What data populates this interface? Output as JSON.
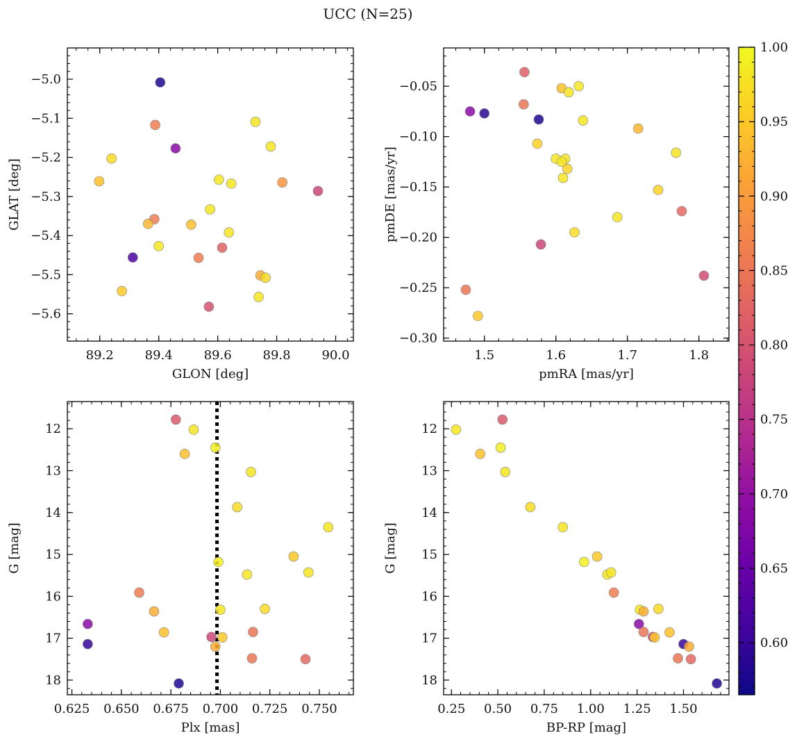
{
  "figure": {
    "title": "UCC (N=25)"
  },
  "colors": {
    "axis": "#000000",
    "marker_edge": "#7f7f7f",
    "vline": "#000000"
  },
  "colorbar": {
    "colormap": "plasma",
    "vmin": 0.565,
    "vmax": 1.0,
    "ticks": [
      0.6,
      0.65,
      0.7,
      0.75,
      0.8,
      0.85,
      0.9,
      0.95,
      1.0
    ],
    "tick_labels": [
      "0.60",
      "0.65",
      "0.70",
      "0.75",
      "0.80",
      "0.85",
      "0.90",
      "0.95",
      "1.00"
    ]
  },
  "chart_data": [
    {
      "type": "scatter",
      "xlabel": "GLON [deg]",
      "ylabel": "GLAT [deg]",
      "xlim": [
        89.09,
        90.06
      ],
      "ylim": [
        -5.67,
        -4.92
      ],
      "xticks": [
        89.2,
        89.4,
        89.6,
        89.8,
        90.0
      ],
      "xtick_labels": [
        "89.2",
        "89.4",
        "89.6",
        "89.8",
        "90.0"
      ],
      "yticks": [
        -5.0,
        -5.1,
        -5.2,
        -5.3,
        -5.4,
        -5.5,
        -5.6
      ],
      "ytick_labels": [
        "−5.0",
        "−5.1",
        "−5.2",
        "−5.3",
        "−5.4",
        "−5.5",
        "−5.6"
      ],
      "y_inverted": false,
      "points": [
        {
          "x": 89.405,
          "y": -5.008,
          "c": 0.58
        },
        {
          "x": 89.388,
          "y": -5.117,
          "c": 0.86
        },
        {
          "x": 89.457,
          "y": -5.177,
          "c": 0.69
        },
        {
          "x": 89.24,
          "y": -5.203,
          "c": 0.97
        },
        {
          "x": 89.198,
          "y": -5.261,
          "c": 0.94
        },
        {
          "x": 89.728,
          "y": -5.109,
          "c": 0.98
        },
        {
          "x": 89.78,
          "y": -5.172,
          "c": 0.98
        },
        {
          "x": 89.604,
          "y": -5.257,
          "c": 0.98
        },
        {
          "x": 89.646,
          "y": -5.267,
          "c": 0.98
        },
        {
          "x": 89.819,
          "y": -5.264,
          "c": 0.89
        },
        {
          "x": 89.94,
          "y": -5.286,
          "c": 0.78
        },
        {
          "x": 89.574,
          "y": -5.333,
          "c": 0.98
        },
        {
          "x": 89.385,
          "y": -5.358,
          "c": 0.86
        },
        {
          "x": 89.364,
          "y": -5.37,
          "c": 0.93
        },
        {
          "x": 89.51,
          "y": -5.372,
          "c": 0.94
        },
        {
          "x": 89.638,
          "y": -5.392,
          "c": 0.98
        },
        {
          "x": 89.4,
          "y": -5.427,
          "c": 0.98
        },
        {
          "x": 89.615,
          "y": -5.431,
          "c": 0.82
        },
        {
          "x": 89.312,
          "y": -5.456,
          "c": 0.62
        },
        {
          "x": 89.535,
          "y": -5.457,
          "c": 0.86
        },
        {
          "x": 89.745,
          "y": -5.502,
          "c": 0.92
        },
        {
          "x": 89.762,
          "y": -5.508,
          "c": 0.97
        },
        {
          "x": 89.275,
          "y": -5.542,
          "c": 0.95
        },
        {
          "x": 89.739,
          "y": -5.557,
          "c": 0.98
        },
        {
          "x": 89.57,
          "y": -5.582,
          "c": 0.8
        }
      ]
    },
    {
      "type": "scatter",
      "xlabel": "pmRA [mas/yr]",
      "ylabel": "pmDE [mas/yr]",
      "xlim": [
        1.443,
        1.842
      ],
      "ylim": [
        -0.303,
        -0.012
      ],
      "xticks": [
        1.5,
        1.6,
        1.7,
        1.8
      ],
      "xtick_labels": [
        "1.5",
        "1.6",
        "1.7",
        "1.8"
      ],
      "yticks": [
        -0.05,
        -0.1,
        -0.15,
        -0.2,
        -0.25,
        -0.3
      ],
      "ytick_labels": [
        "−0.05",
        "−0.10",
        "−0.15",
        "−0.20",
        "−0.25",
        "−0.30"
      ],
      "y_inverted": false,
      "points": [
        {
          "x": 1.556,
          "y": -0.036,
          "c": 0.82
        },
        {
          "x": 1.608,
          "y": -0.052,
          "c": 0.94
        },
        {
          "x": 1.632,
          "y": -0.05,
          "c": 0.98
        },
        {
          "x": 1.618,
          "y": -0.056,
          "c": 0.98
        },
        {
          "x": 1.555,
          "y": -0.068,
          "c": 0.85
        },
        {
          "x": 1.48,
          "y": -0.075,
          "c": 0.69
        },
        {
          "x": 1.5,
          "y": -0.077,
          "c": 0.59
        },
        {
          "x": 1.576,
          "y": -0.083,
          "c": 0.58
        },
        {
          "x": 1.638,
          "y": -0.084,
          "c": 0.98
        },
        {
          "x": 1.715,
          "y": -0.092,
          "c": 0.93
        },
        {
          "x": 1.574,
          "y": -0.107,
          "c": 0.96
        },
        {
          "x": 1.768,
          "y": -0.116,
          "c": 0.98
        },
        {
          "x": 1.6,
          "y": -0.122,
          "c": 0.98
        },
        {
          "x": 1.613,
          "y": -0.122,
          "c": 0.98
        },
        {
          "x": 1.608,
          "y": -0.125,
          "c": 0.98
        },
        {
          "x": 1.616,
          "y": -0.132,
          "c": 0.96
        },
        {
          "x": 1.61,
          "y": -0.141,
          "c": 0.98
        },
        {
          "x": 1.743,
          "y": -0.153,
          "c": 0.96
        },
        {
          "x": 1.776,
          "y": -0.174,
          "c": 0.83
        },
        {
          "x": 1.686,
          "y": -0.18,
          "c": 0.98
        },
        {
          "x": 1.626,
          "y": -0.195,
          "c": 0.97
        },
        {
          "x": 1.579,
          "y": -0.207,
          "c": 0.78
        },
        {
          "x": 1.807,
          "y": -0.238,
          "c": 0.79
        },
        {
          "x": 1.474,
          "y": -0.252,
          "c": 0.85
        },
        {
          "x": 1.491,
          "y": -0.278,
          "c": 0.95
        }
      ]
    },
    {
      "type": "scatter",
      "xlabel": "Plx [mas]",
      "ylabel": "G [mag]",
      "xlim": [
        0.6227,
        0.7672
      ],
      "ylim": [
        11.35,
        18.35
      ],
      "xticks": [
        0.625,
        0.65,
        0.675,
        0.7,
        0.725,
        0.75
      ],
      "xtick_labels": [
        "0.625",
        "0.650",
        "0.675",
        "0.700",
        "0.725",
        "0.750"
      ],
      "yticks": [
        12,
        13,
        14,
        15,
        16,
        17,
        18
      ],
      "ytick_labels": [
        "12",
        "13",
        "14",
        "15",
        "16",
        "17",
        "18"
      ],
      "y_inverted": true,
      "vline": {
        "x": 0.6983
      },
      "points": [
        {
          "x": 0.6775,
          "y": 11.78,
          "c": 0.81
        },
        {
          "x": 0.6865,
          "y": 12.02,
          "c": 0.98
        },
        {
          "x": 0.682,
          "y": 12.6,
          "c": 0.94
        },
        {
          "x": 0.6975,
          "y": 12.45,
          "c": 0.99
        },
        {
          "x": 0.7155,
          "y": 13.03,
          "c": 0.98
        },
        {
          "x": 0.7085,
          "y": 13.87,
          "c": 0.97
        },
        {
          "x": 0.7545,
          "y": 14.35,
          "c": 0.98
        },
        {
          "x": 0.737,
          "y": 15.05,
          "c": 0.95
        },
        {
          "x": 0.699,
          "y": 15.18,
          "c": 0.99
        },
        {
          "x": 0.7445,
          "y": 15.43,
          "c": 0.98
        },
        {
          "x": 0.7135,
          "y": 15.48,
          "c": 0.98
        },
        {
          "x": 0.659,
          "y": 15.91,
          "c": 0.86
        },
        {
          "x": 0.7225,
          "y": 16.3,
          "c": 0.97
        },
        {
          "x": 0.7,
          "y": 16.32,
          "c": 0.98
        },
        {
          "x": 0.6665,
          "y": 16.36,
          "c": 0.92
        },
        {
          "x": 0.633,
          "y": 16.66,
          "c": 0.69
        },
        {
          "x": 0.7165,
          "y": 16.85,
          "c": 0.85
        },
        {
          "x": 0.6715,
          "y": 16.86,
          "c": 0.94
        },
        {
          "x": 0.6955,
          "y": 16.97,
          "c": 0.78
        },
        {
          "x": 0.701,
          "y": 16.98,
          "c": 0.95
        },
        {
          "x": 0.633,
          "y": 17.14,
          "c": 0.6
        },
        {
          "x": 0.6975,
          "y": 17.2,
          "c": 0.92
        },
        {
          "x": 0.716,
          "y": 17.48,
          "c": 0.85
        },
        {
          "x": 0.743,
          "y": 17.5,
          "c": 0.83
        },
        {
          "x": 0.679,
          "y": 18.08,
          "c": 0.58
        }
      ]
    },
    {
      "type": "scatter",
      "xlabel": "BP-RP [mag]",
      "ylabel": "G [mag]",
      "xlim": [
        0.208,
        1.745
      ],
      "ylim": [
        11.35,
        18.35
      ],
      "xticks": [
        0.25,
        0.5,
        0.75,
        1.0,
        1.25,
        1.5
      ],
      "xtick_labels": [
        "0.25",
        "0.50",
        "0.75",
        "1.00",
        "1.25",
        "1.50"
      ],
      "yticks": [
        12,
        13,
        14,
        15,
        16,
        17,
        18
      ],
      "ytick_labels": [
        "12",
        "13",
        "14",
        "15",
        "16",
        "17",
        "18"
      ],
      "y_inverted": true,
      "points": [
        {
          "x": 0.275,
          "y": 12.02,
          "c": 0.98
        },
        {
          "x": 0.525,
          "y": 11.78,
          "c": 0.81
        },
        {
          "x": 0.405,
          "y": 12.6,
          "c": 0.94
        },
        {
          "x": 0.515,
          "y": 12.45,
          "c": 0.99
        },
        {
          "x": 0.54,
          "y": 13.03,
          "c": 0.98
        },
        {
          "x": 0.675,
          "y": 13.87,
          "c": 0.97
        },
        {
          "x": 0.85,
          "y": 14.35,
          "c": 0.98
        },
        {
          "x": 0.965,
          "y": 15.18,
          "c": 0.99
        },
        {
          "x": 1.035,
          "y": 15.05,
          "c": 0.95
        },
        {
          "x": 1.09,
          "y": 15.48,
          "c": 0.98
        },
        {
          "x": 1.11,
          "y": 15.43,
          "c": 0.98
        },
        {
          "x": 1.125,
          "y": 15.91,
          "c": 0.86
        },
        {
          "x": 1.265,
          "y": 16.32,
          "c": 0.98
        },
        {
          "x": 1.285,
          "y": 16.36,
          "c": 0.92
        },
        {
          "x": 1.365,
          "y": 16.3,
          "c": 0.97
        },
        {
          "x": 1.26,
          "y": 16.66,
          "c": 0.69
        },
        {
          "x": 1.285,
          "y": 16.85,
          "c": 0.85
        },
        {
          "x": 1.425,
          "y": 16.86,
          "c": 0.94
        },
        {
          "x": 1.335,
          "y": 16.97,
          "c": 0.78
        },
        {
          "x": 1.345,
          "y": 16.98,
          "c": 0.95
        },
        {
          "x": 1.5,
          "y": 17.14,
          "c": 0.6
        },
        {
          "x": 1.53,
          "y": 17.2,
          "c": 0.92
        },
        {
          "x": 1.47,
          "y": 17.48,
          "c": 0.85
        },
        {
          "x": 1.54,
          "y": 17.5,
          "c": 0.83
        },
        {
          "x": 1.68,
          "y": 18.08,
          "c": 0.58
        }
      ]
    }
  ]
}
